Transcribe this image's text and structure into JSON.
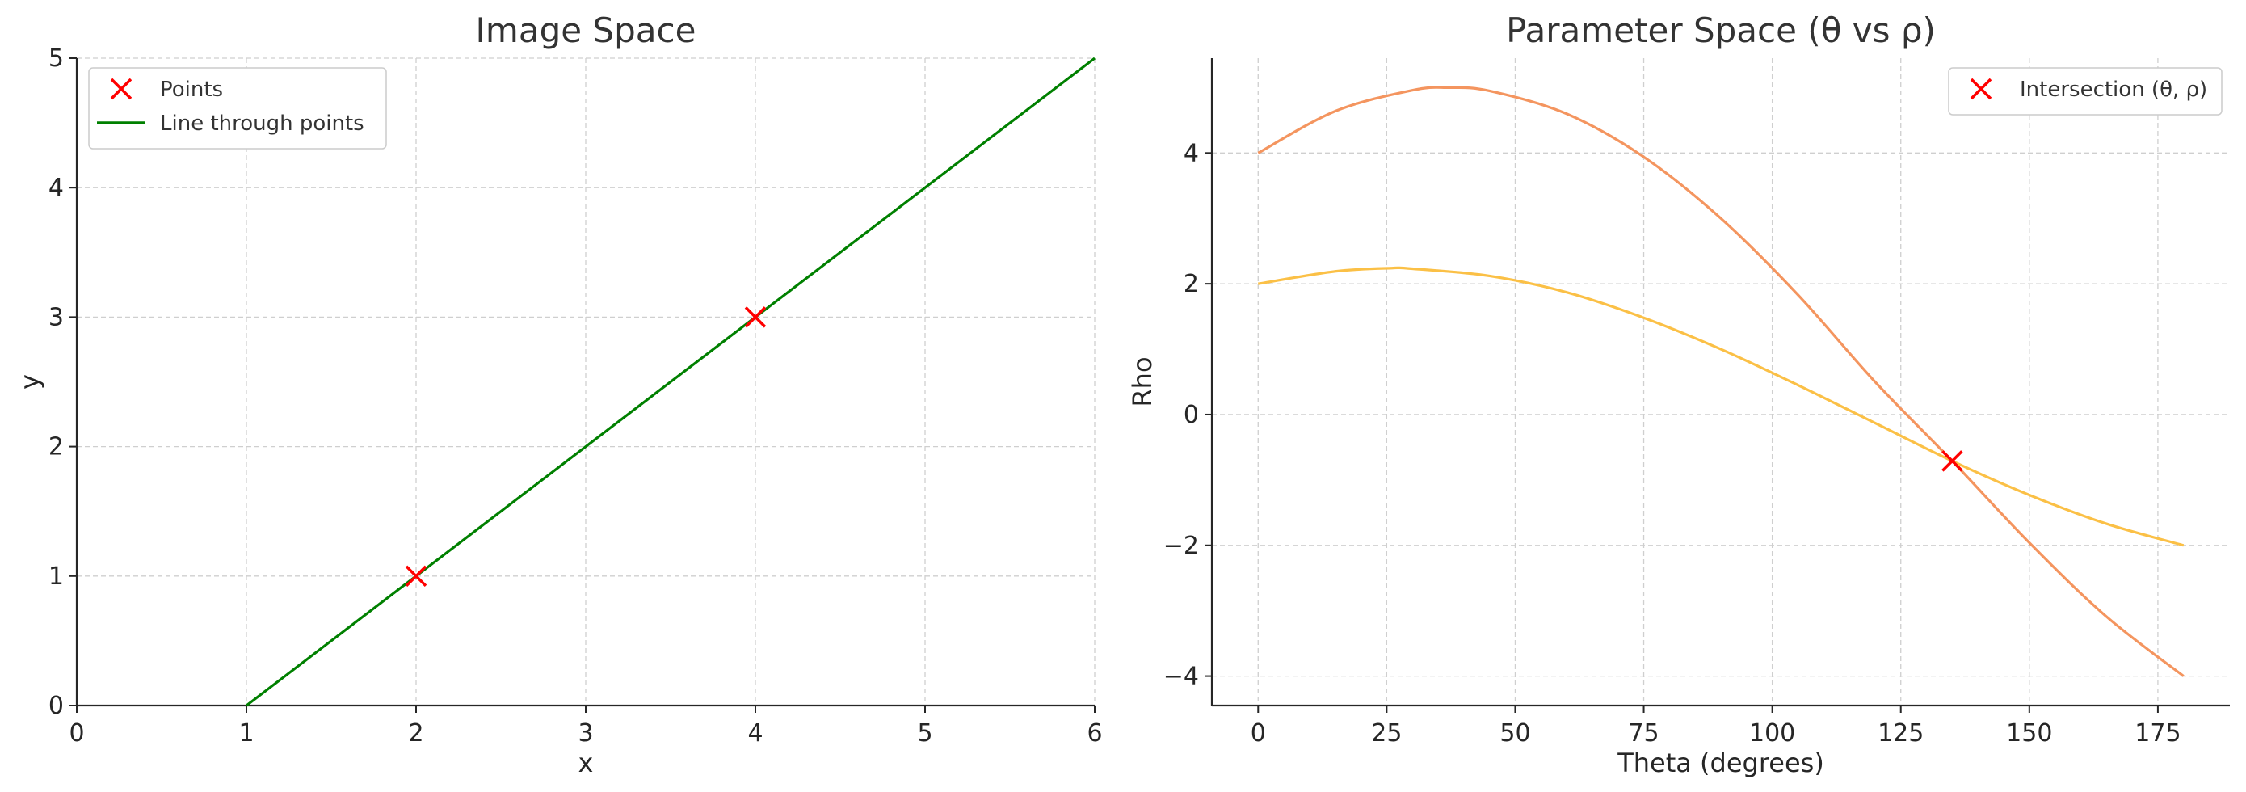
{
  "chart_data": [
    {
      "type": "line",
      "title": "Image Space",
      "xlabel": "x",
      "ylabel": "y",
      "xlim": [
        0,
        6
      ],
      "ylim": [
        0,
        5
      ],
      "xticks": [
        "0",
        "1",
        "2",
        "3",
        "4",
        "5",
        "6"
      ],
      "yticks": [
        "0",
        "1",
        "2",
        "3",
        "4",
        "5"
      ],
      "grid": true,
      "legend_position": "top-left",
      "series": [
        {
          "name": "Points",
          "kind": "scatter",
          "marker": "x",
          "color": "#ff0000",
          "x": [
            2,
            4
          ],
          "y": [
            1,
            3
          ]
        },
        {
          "name": "Line through points",
          "kind": "line",
          "color": "#008000",
          "x": [
            1,
            6
          ],
          "y": [
            0,
            5
          ]
        }
      ]
    },
    {
      "type": "line",
      "title": "Parameter Space (θ vs ρ)",
      "xlabel": "Theta (degrees)",
      "ylabel": "Rho",
      "xlim": [
        -9,
        189
      ],
      "ylim": [
        -4.45,
        5.45
      ],
      "xticks": [
        "0",
        "25",
        "50",
        "75",
        "100",
        "125",
        "150",
        "175"
      ],
      "yticks": [
        "−4",
        "−2",
        "0",
        "2",
        "4"
      ],
      "grid": true,
      "legend_position": "top-right",
      "series": [
        {
          "kind": "line",
          "color": "#f4955f",
          "x": [
            0,
            15,
            30,
            37,
            45,
            60,
            75,
            90,
            105,
            120,
            135,
            150,
            165,
            180
          ],
          "y": [
            4.0,
            4.64,
            4.96,
            5.0,
            4.95,
            4.6,
            3.94,
            3.0,
            1.83,
            0.5,
            -0.71,
            -1.96,
            -3.09,
            -4.0
          ]
        },
        {
          "kind": "line",
          "color": "#fbc046",
          "x": [
            0,
            15,
            26,
            30,
            45,
            60,
            75,
            90,
            105,
            120,
            135,
            150,
            165,
            180
          ],
          "y": [
            2.0,
            2.19,
            2.24,
            2.23,
            2.12,
            1.87,
            1.48,
            1.0,
            0.45,
            -0.13,
            -0.71,
            -1.23,
            -1.67,
            -2.0
          ]
        },
        {
          "name": "Intersection (θ, ρ)",
          "kind": "scatter",
          "marker": "x",
          "color": "#ff0000",
          "x": [
            135
          ],
          "y": [
            -0.71
          ]
        }
      ]
    }
  ]
}
